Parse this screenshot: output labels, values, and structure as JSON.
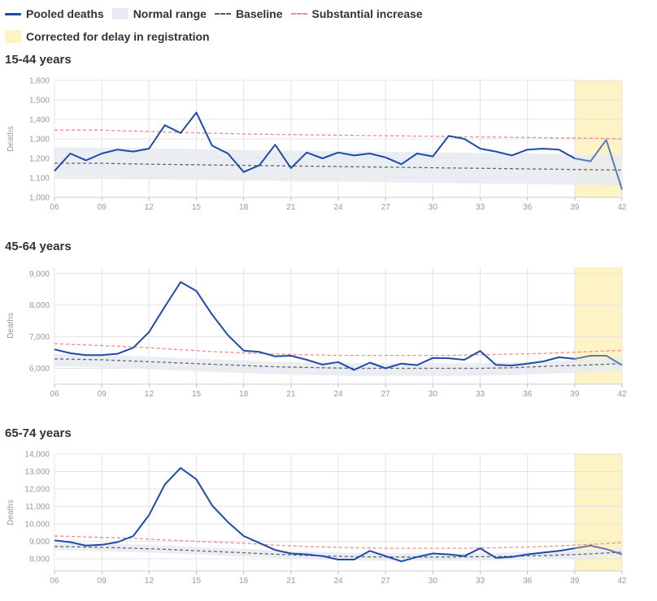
{
  "legend": {
    "pooled": "Pooled deaths",
    "normal": "Normal range",
    "baseline": "Baseline",
    "substantial": "Substantial increase",
    "corrected": "Corrected for delay in registration"
  },
  "colors": {
    "pooled": "#1f4aa8",
    "pooled_corrected": "#5a7bb8",
    "normal_band": "#e6ebf1",
    "baseline": "#666666",
    "substantial": "#ef8a8a",
    "corrected_band": "#fdf3c4",
    "grid": "#e4e4e4"
  },
  "chart_data": [
    {
      "type": "line",
      "title": "15-44 years",
      "ylabel": "Deaths",
      "xlim": [
        6,
        42
      ],
      "ylim": [
        1000,
        1600
      ],
      "yticks": [
        1000,
        1100,
        1200,
        1300,
        1400,
        1500,
        1600
      ],
      "ytick_labels": [
        "1,000",
        "1,100",
        "1,200",
        "1,300",
        "1,400",
        "1,500",
        "1,600"
      ],
      "xticks": [
        6,
        9,
        12,
        15,
        18,
        21,
        24,
        27,
        30,
        33,
        36,
        39,
        42
      ],
      "xtick_labels": [
        "06",
        "09",
        "12",
        "15",
        "18",
        "21",
        "24",
        "27",
        "30",
        "33",
        "36",
        "39",
        "42"
      ],
      "corrected_from": 39,
      "x": [
        6,
        7,
        8,
        9,
        10,
        11,
        12,
        13,
        14,
        15,
        16,
        17,
        18,
        19,
        20,
        21,
        22,
        23,
        24,
        25,
        26,
        27,
        28,
        29,
        30,
        31,
        32,
        33,
        34,
        35,
        36,
        37,
        38,
        39,
        40,
        41,
        42
      ],
      "series": [
        {
          "name": "Pooled deaths",
          "values": [
            1135,
            1225,
            1190,
            1225,
            1245,
            1235,
            1250,
            1370,
            1330,
            1435,
            1265,
            1225,
            1130,
            1165,
            1270,
            1150,
            1230,
            1200,
            1230,
            1215,
            1225,
            1205,
            1170,
            1225,
            1210,
            1315,
            1300,
            1250,
            1235,
            1215,
            1245,
            1250,
            1245,
            1200,
            1185,
            1295,
            1040
          ]
        },
        {
          "name": "Baseline",
          "values": [
            1175,
            1175,
            1175,
            1175,
            1173,
            1172,
            1170,
            1169,
            1168,
            1167,
            1166,
            1165,
            1164,
            1163,
            1162,
            1161,
            1160,
            1159,
            1158,
            1157,
            1156,
            1155,
            1154,
            1153,
            1152,
            1151,
            1150,
            1149,
            1148,
            1147,
            1146,
            1145,
            1144,
            1143,
            1142,
            1141,
            1140
          ]
        },
        {
          "name": "Substantial increase",
          "values": [
            1345,
            1345,
            1345,
            1345,
            1342,
            1340,
            1338,
            1335,
            1333,
            1331,
            1329,
            1327,
            1325,
            1324,
            1323,
            1322,
            1321,
            1320,
            1319,
            1318,
            1317,
            1316,
            1315,
            1314,
            1313,
            1312,
            1311,
            1310,
            1309,
            1308,
            1307,
            1306,
            1305,
            1304,
            1303,
            1302,
            1300
          ]
        },
        {
          "name": "Normal range",
          "upper": [
            1255,
            1255,
            1255,
            1255,
            1254,
            1253,
            1252,
            1250,
            1249,
            1248,
            1246,
            1245,
            1244,
            1243,
            1242,
            1240,
            1239,
            1238,
            1237,
            1236,
            1235,
            1234,
            1233,
            1232,
            1231,
            1230,
            1229,
            1228,
            1227,
            1226,
            1225,
            1224,
            1223,
            1222,
            1221,
            1220,
            1219
          ],
          "lower": [
            1095,
            1095,
            1095,
            1095,
            1094,
            1093,
            1092,
            1091,
            1090,
            1089,
            1088,
            1087,
            1086,
            1085,
            1084,
            1083,
            1082,
            1081,
            1080,
            1079,
            1078,
            1077,
            1076,
            1075,
            1074,
            1073,
            1072,
            1071,
            1070,
            1069,
            1068,
            1067,
            1066,
            1065,
            1064,
            1063,
            1062
          ]
        }
      ]
    },
    {
      "type": "line",
      "title": "45-64 years",
      "ylabel": "Deaths",
      "xlim": [
        6,
        42
      ],
      "ylim": [
        5500,
        9200
      ],
      "yticks": [
        6000,
        7000,
        8000,
        9000
      ],
      "ytick_labels": [
        "6,000",
        "7,000",
        "8,000",
        "9,000"
      ],
      "xticks": [
        6,
        9,
        12,
        15,
        18,
        21,
        24,
        27,
        30,
        33,
        36,
        39,
        42
      ],
      "xtick_labels": [
        "06",
        "09",
        "12",
        "15",
        "18",
        "21",
        "24",
        "27",
        "30",
        "33",
        "36",
        "39",
        "42"
      ],
      "corrected_from": 39,
      "x": [
        6,
        7,
        8,
        9,
        10,
        11,
        12,
        13,
        14,
        15,
        16,
        17,
        18,
        19,
        20,
        21,
        22,
        23,
        24,
        25,
        26,
        27,
        28,
        29,
        30,
        31,
        32,
        33,
        34,
        35,
        36,
        37,
        38,
        39,
        40,
        41,
        42
      ],
      "series": [
        {
          "name": "Pooled deaths",
          "values": [
            6600,
            6480,
            6420,
            6420,
            6460,
            6650,
            7150,
            7950,
            8730,
            8450,
            7700,
            7050,
            6560,
            6520,
            6380,
            6400,
            6270,
            6120,
            6200,
            5950,
            6180,
            6000,
            6150,
            6100,
            6330,
            6320,
            6270,
            6550,
            6110,
            6090,
            6150,
            6220,
            6350,
            6300,
            6400,
            6400,
            6100
          ]
        },
        {
          "name": "Baseline",
          "values": [
            6300,
            6290,
            6280,
            6270,
            6250,
            6230,
            6210,
            6190,
            6170,
            6150,
            6130,
            6110,
            6090,
            6070,
            6050,
            6040,
            6030,
            6020,
            6010,
            6000,
            6000,
            6000,
            6000,
            6000,
            6000,
            6000,
            6000,
            6000,
            6010,
            6020,
            6040,
            6060,
            6080,
            6090,
            6110,
            6130,
            6150
          ]
        },
        {
          "name": "Substantial increase",
          "values": [
            6780,
            6760,
            6740,
            6720,
            6700,
            6680,
            6650,
            6620,
            6590,
            6560,
            6530,
            6510,
            6490,
            6470,
            6450,
            6440,
            6430,
            6420,
            6410,
            6410,
            6410,
            6410,
            6410,
            6410,
            6410,
            6410,
            6420,
            6430,
            6440,
            6450,
            6460,
            6470,
            6490,
            6510,
            6530,
            6550,
            6570
          ]
        },
        {
          "name": "Normal range",
          "upper": [
            6460,
            6450,
            6440,
            6430,
            6410,
            6390,
            6370,
            6350,
            6330,
            6310,
            6290,
            6270,
            6250,
            6230,
            6210,
            6200,
            6190,
            6180,
            6170,
            6160,
            6160,
            6160,
            6160,
            6160,
            6160,
            6160,
            6160,
            6170,
            6180,
            6190,
            6200,
            6220,
            6240,
            6260,
            6280,
            6300,
            6320
          ],
          "lower": [
            6060,
            6050,
            6040,
            6030,
            6010,
            5990,
            5970,
            5950,
            5930,
            5910,
            5890,
            5870,
            5850,
            5830,
            5810,
            5800,
            5790,
            5780,
            5770,
            5760,
            5760,
            5760,
            5760,
            5760,
            5760,
            5760,
            5760,
            5770,
            5780,
            5790,
            5800,
            5820,
            5840,
            5860,
            5880,
            5900,
            5920
          ]
        }
      ]
    },
    {
      "type": "line",
      "title": "65-74 years",
      "ylabel": "Deaths",
      "xlim": [
        6,
        42
      ],
      "ylim": [
        7300,
        14000
      ],
      "yticks": [
        8000,
        9000,
        10000,
        11000,
        12000,
        13000,
        14000
      ],
      "ytick_labels": [
        "8,000",
        "9,000",
        "10,000",
        "11,000",
        "12,000",
        "13,000",
        "14,000"
      ],
      "xticks": [
        6,
        9,
        12,
        15,
        18,
        21,
        24,
        27,
        30,
        33,
        36,
        39,
        42
      ],
      "xtick_labels": [
        "06",
        "09",
        "12",
        "15",
        "18",
        "21",
        "24",
        "27",
        "30",
        "33",
        "36",
        "39",
        "42"
      ],
      "corrected_from": 39,
      "x": [
        6,
        7,
        8,
        9,
        10,
        11,
        12,
        13,
        14,
        15,
        16,
        17,
        18,
        19,
        20,
        21,
        22,
        23,
        24,
        25,
        26,
        27,
        28,
        29,
        30,
        31,
        32,
        33,
        34,
        35,
        36,
        37,
        38,
        39,
        40,
        41,
        42
      ],
      "series": [
        {
          "name": "Pooled deaths",
          "values": [
            9050,
            8950,
            8750,
            8800,
            8950,
            9300,
            10500,
            12250,
            13200,
            12550,
            11050,
            10100,
            9300,
            8900,
            8500,
            8300,
            8250,
            8150,
            7950,
            7950,
            8450,
            8150,
            7850,
            8100,
            8300,
            8250,
            8150,
            8600,
            8050,
            8100,
            8250,
            8350,
            8450,
            8600,
            8750,
            8550,
            8250
          ]
        },
        {
          "name": "Baseline",
          "values": [
            8700,
            8690,
            8670,
            8650,
            8630,
            8600,
            8570,
            8540,
            8500,
            8460,
            8420,
            8380,
            8340,
            8300,
            8260,
            8220,
            8190,
            8160,
            8140,
            8120,
            8110,
            8100,
            8100,
            8100,
            8100,
            8100,
            8110,
            8120,
            8130,
            8140,
            8160,
            8180,
            8210,
            8240,
            8280,
            8330,
            8380
          ]
        },
        {
          "name": "Substantial increase",
          "values": [
            9300,
            9280,
            9250,
            9220,
            9200,
            9170,
            9120,
            9080,
            9040,
            9000,
            8960,
            8920,
            8880,
            8840,
            8780,
            8740,
            8700,
            8680,
            8650,
            8630,
            8610,
            8600,
            8600,
            8600,
            8600,
            8600,
            8600,
            8610,
            8630,
            8650,
            8670,
            8700,
            8740,
            8780,
            8820,
            8870,
            8920
          ]
        },
        {
          "name": "Normal range",
          "upper": [
            8920,
            8910,
            8890,
            8870,
            8850,
            8820,
            8790,
            8760,
            8720,
            8680,
            8640,
            8600,
            8560,
            8520,
            8480,
            8440,
            8410,
            8380,
            8360,
            8340,
            8330,
            8320,
            8320,
            8320,
            8320,
            8320,
            8330,
            8340,
            8350,
            8360,
            8380,
            8400,
            8430,
            8460,
            8500,
            8550,
            8600
          ],
          "lower": [
            8480,
            8470,
            8450,
            8430,
            8410,
            8380,
            8350,
            8320,
            8280,
            8240,
            8200,
            8160,
            8120,
            8080,
            8040,
            8000,
            7970,
            7940,
            7920,
            7900,
            7890,
            7880,
            7880,
            7880,
            7880,
            7880,
            7890,
            7900,
            7910,
            7920,
            7940,
            7960,
            7990,
            8020,
            8060,
            8110,
            8160
          ]
        }
      ]
    }
  ]
}
